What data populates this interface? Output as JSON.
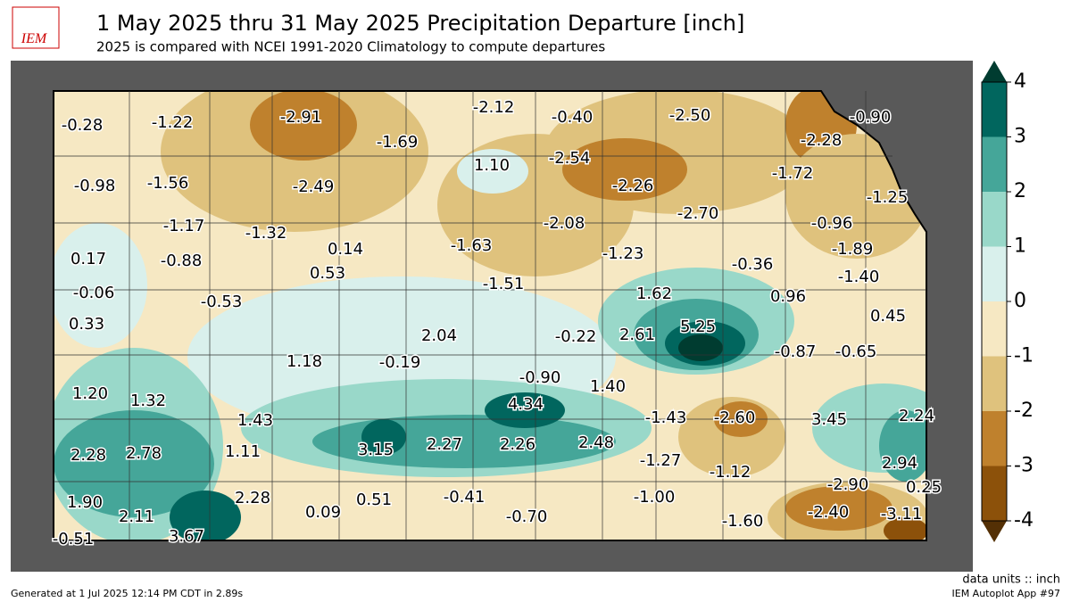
{
  "header": {
    "logo": "IEM",
    "title": "1 May 2025 thru 31 May 2025 Precipitation Departure [inch]",
    "subtitle": "2025 is compared with NCEI 1991-2020 Climatology to compute departures"
  },
  "colorbar": {
    "ticks": [
      -4,
      -3,
      -2,
      -1,
      0,
      1,
      2,
      3,
      4
    ],
    "colors": [
      "#8c510a",
      "#bf812d",
      "#dfc27d",
      "#f6e8c3",
      "#d9f0ec",
      "#99d8c9",
      "#45a699",
      "#01665e"
    ],
    "under": "#543005",
    "over": "#003c30"
  },
  "labels": [
    "-0.28",
    "-1.22",
    "-2.91",
    "-2.12",
    "-0.40",
    "-2.50",
    "-0.90",
    "-1.69",
    "-2.28",
    "1.10",
    "-2.54",
    "-0.98",
    "-1.56",
    "-2.49",
    "-2.26",
    "-1.72",
    "-1.25",
    "-2.08",
    "-2.70",
    "-0.96",
    "-1.17",
    "-1.32",
    "0.14",
    "-1.63",
    "-1.23",
    "-1.89",
    "0.17",
    "-0.88",
    "-0.36",
    "0.53",
    "-1.51",
    "-1.40",
    "-0.06",
    "1.62",
    "0.96",
    "-0.53",
    "0.45",
    "0.33",
    "5.25",
    "2.04",
    "-0.22",
    "2.61",
    "-0.87",
    "-0.65",
    "1.18",
    "-0.19",
    "-0.90",
    "1.40",
    "1.20",
    "1.32",
    "4.34",
    "-1.43",
    "-2.60",
    "3.45",
    "2.24",
    "1.43",
    "3.15",
    "2.27",
    "2.26",
    "2.48",
    "2.28",
    "2.78",
    "1.11",
    "-1.27",
    "-1.12",
    "2.94",
    "-2.90",
    "0.25",
    "1.90",
    "2.11",
    "2.28",
    "0.09",
    "0.51",
    "-0.41",
    "-0.70",
    "-1.00",
    "-1.60",
    "-2.40",
    "-3.11",
    "-0.51",
    "3.67"
  ],
  "footer": {
    "units": "data units :: inch",
    "generated": "Generated at 1 Jul 2025 12:14 PM CDT in 2.89s",
    "app": "IEM Autoplot App #97"
  }
}
